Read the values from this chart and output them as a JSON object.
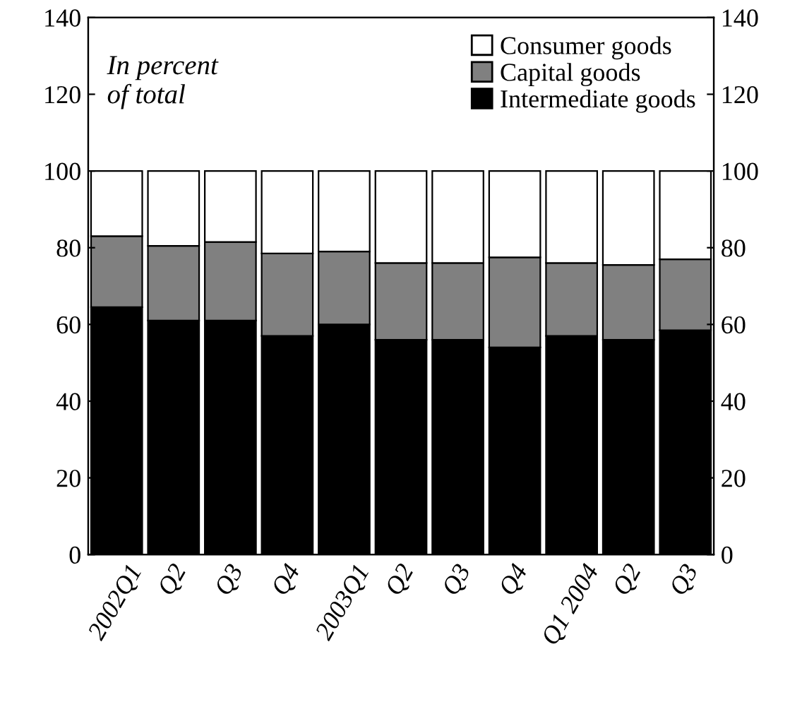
{
  "chart_data": {
    "type": "bar",
    "stacked": true,
    "categories": [
      "2002Q1",
      "Q2",
      "Q3",
      "Q4",
      "2003Q1",
      "Q2",
      "Q3",
      "Q4",
      "Q1 2004",
      "Q2",
      "Q3"
    ],
    "series": [
      {
        "name": "Intermediate goods",
        "color": "#000000",
        "values": [
          64.5,
          61,
          61,
          57,
          60,
          56,
          56,
          54,
          57,
          56,
          58.5
        ]
      },
      {
        "name": "Capital goods",
        "color": "#808080",
        "values": [
          18.5,
          19.5,
          20.5,
          21.5,
          19,
          20,
          20,
          23.5,
          19,
          19.5,
          18.5
        ]
      },
      {
        "name": "Consumer goods",
        "color": "#ffffff",
        "values": [
          17,
          19.5,
          18.5,
          21.5,
          21,
          24,
          24,
          22.5,
          24,
          24.5,
          23
        ]
      }
    ],
    "ylim": [
      0,
      140
    ],
    "yticks": [
      0,
      20,
      40,
      60,
      80,
      100,
      120,
      140
    ],
    "y2lim": [
      0,
      140
    ],
    "y2ticks": [
      0,
      20,
      40,
      60,
      80,
      100,
      120,
      140
    ],
    "annotations": [
      "In percent\nof total"
    ],
    "legend": "top right",
    "grid": false
  }
}
